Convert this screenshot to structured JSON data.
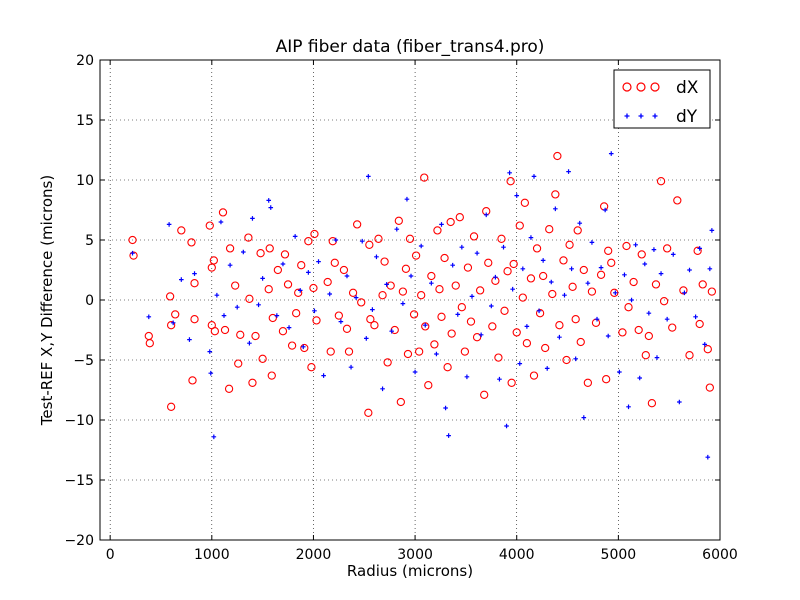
{
  "chart_data": {
    "type": "scatter",
    "title": "AIP fiber data (fiber_trans4.pro)",
    "xlabel": "Radius (microns)",
    "ylabel": "Test-REF X,Y Difference (microns)",
    "xlim": [
      -100,
      6000
    ],
    "ylim": [
      -20,
      20
    ],
    "x_ticks": [
      0,
      1000,
      2000,
      3000,
      4000,
      5000,
      6000
    ],
    "x_tick_labels": [
      "0",
      "1000",
      "2000",
      "3000",
      "4000",
      "5000",
      "6000"
    ],
    "y_ticks": [
      -20,
      -15,
      -10,
      -5,
      0,
      5,
      10,
      15,
      20
    ],
    "y_tick_labels": [
      "−20",
      "−15",
      "−10",
      "−5",
      "0",
      "5",
      "10",
      "15",
      "20"
    ],
    "grid": true,
    "legend_position": "top-right",
    "series": [
      {
        "name": "dX",
        "marker": "open-circle",
        "color": "#ff0000",
        "points": [
          [
            220,
            5.0
          ],
          [
            230,
            3.7
          ],
          [
            380,
            -3.0
          ],
          [
            390,
            -3.6
          ],
          [
            590,
            0.3
          ],
          [
            600,
            -2.1
          ],
          [
            600,
            -8.9
          ],
          [
            640,
            -1.2
          ],
          [
            700,
            5.8
          ],
          [
            800,
            4.8
          ],
          [
            810,
            -6.7
          ],
          [
            830,
            1.4
          ],
          [
            830,
            -1.6
          ],
          [
            980,
            6.2
          ],
          [
            1000,
            2.7
          ],
          [
            1000,
            -2.1
          ],
          [
            1020,
            3.3
          ],
          [
            1030,
            -2.6
          ],
          [
            1110,
            7.3
          ],
          [
            1130,
            -2.5
          ],
          [
            1170,
            -7.4
          ],
          [
            1180,
            4.3
          ],
          [
            1230,
            1.2
          ],
          [
            1260,
            -5.3
          ],
          [
            1280,
            -2.9
          ],
          [
            1360,
            5.2
          ],
          [
            1370,
            0.1
          ],
          [
            1400,
            -6.9
          ],
          [
            1430,
            -3.0
          ],
          [
            1480,
            3.9
          ],
          [
            1500,
            -4.9
          ],
          [
            1560,
            0.9
          ],
          [
            1570,
            4.3
          ],
          [
            1590,
            -6.3
          ],
          [
            1600,
            -1.5
          ],
          [
            1650,
            2.5
          ],
          [
            1700,
            -2.6
          ],
          [
            1720,
            3.8
          ],
          [
            1750,
            1.3
          ],
          [
            1790,
            -3.8
          ],
          [
            1830,
            -1.1
          ],
          [
            1850,
            0.6
          ],
          [
            1880,
            2.9
          ],
          [
            1910,
            -4.0
          ],
          [
            1950,
            4.9
          ],
          [
            1980,
            -5.6
          ],
          [
            2000,
            1.0
          ],
          [
            2010,
            5.5
          ],
          [
            2030,
            -1.7
          ],
          [
            2140,
            1.5
          ],
          [
            2170,
            -4.3
          ],
          [
            2190,
            4.9
          ],
          [
            2210,
            3.1
          ],
          [
            2250,
            -1.3
          ],
          [
            2300,
            2.5
          ],
          [
            2330,
            -2.4
          ],
          [
            2350,
            -4.3
          ],
          [
            2390,
            0.6
          ],
          [
            2430,
            6.3
          ],
          [
            2470,
            -0.2
          ],
          [
            2540,
            -9.4
          ],
          [
            2550,
            4.6
          ],
          [
            2560,
            -1.6
          ],
          [
            2600,
            -2.1
          ],
          [
            2640,
            5.1
          ],
          [
            2680,
            0.4
          ],
          [
            2700,
            3.2
          ],
          [
            2730,
            -5.2
          ],
          [
            2760,
            1.2
          ],
          [
            2800,
            -2.5
          ],
          [
            2840,
            6.6
          ],
          [
            2860,
            -8.5
          ],
          [
            2880,
            0.7
          ],
          [
            2910,
            2.6
          ],
          [
            2930,
            -4.5
          ],
          [
            2950,
            5.1
          ],
          [
            2990,
            -1.2
          ],
          [
            3010,
            3.7
          ],
          [
            3040,
            -4.3
          ],
          [
            3060,
            0.4
          ],
          [
            3090,
            10.2
          ],
          [
            3100,
            -2.2
          ],
          [
            3130,
            -7.1
          ],
          [
            3160,
            2.0
          ],
          [
            3190,
            -3.7
          ],
          [
            3220,
            5.8
          ],
          [
            3240,
            0.9
          ],
          [
            3260,
            -1.4
          ],
          [
            3290,
            3.5
          ],
          [
            3320,
            -5.6
          ],
          [
            3350,
            6.5
          ],
          [
            3360,
            -2.8
          ],
          [
            3400,
            1.2
          ],
          [
            3440,
            6.9
          ],
          [
            3460,
            -0.6
          ],
          [
            3490,
            -4.3
          ],
          [
            3520,
            2.7
          ],
          [
            3550,
            -1.8
          ],
          [
            3580,
            5.3
          ],
          [
            3610,
            -3.1
          ],
          [
            3640,
            0.8
          ],
          [
            3680,
            -7.9
          ],
          [
            3700,
            7.4
          ],
          [
            3720,
            3.1
          ],
          [
            3760,
            -2.2
          ],
          [
            3790,
            1.6
          ],
          [
            3820,
            -4.8
          ],
          [
            3850,
            5.1
          ],
          [
            3880,
            -0.9
          ],
          [
            3910,
            2.4
          ],
          [
            3940,
            9.9
          ],
          [
            3950,
            -6.9
          ],
          [
            3970,
            3.0
          ],
          [
            4000,
            -2.7
          ],
          [
            4030,
            6.2
          ],
          [
            4060,
            0.2
          ],
          [
            4080,
            8.1
          ],
          [
            4100,
            -3.6
          ],
          [
            4140,
            1.8
          ],
          [
            4170,
            -6.3
          ],
          [
            4200,
            4.3
          ],
          [
            4230,
            -1.1
          ],
          [
            4260,
            2.0
          ],
          [
            4280,
            -4.0
          ],
          [
            4320,
            5.9
          ],
          [
            4350,
            0.5
          ],
          [
            4380,
            8.8
          ],
          [
            4400,
            12.0
          ],
          [
            4420,
            -2.1
          ],
          [
            4460,
            3.3
          ],
          [
            4490,
            -5.0
          ],
          [
            4520,
            4.6
          ],
          [
            4550,
            1.1
          ],
          [
            4580,
            -1.6
          ],
          [
            4600,
            5.8
          ],
          [
            4630,
            -3.5
          ],
          [
            4660,
            2.5
          ],
          [
            4700,
            -6.9
          ],
          [
            4740,
            0.7
          ],
          [
            4780,
            -1.9
          ],
          [
            4830,
            2.1
          ],
          [
            4860,
            7.8
          ],
          [
            4880,
            -6.6
          ],
          [
            4900,
            4.1
          ],
          [
            4930,
            3.1
          ],
          [
            4960,
            0.6
          ],
          [
            5040,
            -2.7
          ],
          [
            5080,
            4.5
          ],
          [
            5100,
            -0.6
          ],
          [
            5150,
            1.5
          ],
          [
            5200,
            -2.5
          ],
          [
            5230,
            3.8
          ],
          [
            5270,
            -4.6
          ],
          [
            5300,
            -3.0
          ],
          [
            5330,
            -8.6
          ],
          [
            5370,
            1.3
          ],
          [
            5420,
            9.9
          ],
          [
            5450,
            -0.1
          ],
          [
            5480,
            4.3
          ],
          [
            5530,
            -2.3
          ],
          [
            5580,
            8.3
          ],
          [
            5640,
            0.8
          ],
          [
            5700,
            -4.6
          ],
          [
            5780,
            4.1
          ],
          [
            5800,
            -2.0
          ],
          [
            5830,
            1.3
          ],
          [
            5880,
            -4.1
          ],
          [
            5900,
            -7.3
          ],
          [
            5920,
            0.7
          ]
        ]
      },
      {
        "name": "dY",
        "marker": "plus",
        "color": "#0000ff",
        "points": [
          [
            220,
            3.9
          ],
          [
            380,
            -1.4
          ],
          [
            580,
            6.3
          ],
          [
            620,
            -1.9
          ],
          [
            700,
            1.7
          ],
          [
            780,
            -3.3
          ],
          [
            830,
            2.2
          ],
          [
            980,
            -4.3
          ],
          [
            990,
            -6.1
          ],
          [
            1020,
            -11.4
          ],
          [
            1050,
            0.4
          ],
          [
            1090,
            6.5
          ],
          [
            1120,
            -1.3
          ],
          [
            1180,
            2.9
          ],
          [
            1250,
            -0.6
          ],
          [
            1310,
            4.0
          ],
          [
            1370,
            -3.6
          ],
          [
            1400,
            6.8
          ],
          [
            1460,
            -0.4
          ],
          [
            1500,
            1.8
          ],
          [
            1560,
            8.3
          ],
          [
            1580,
            7.7
          ],
          [
            1640,
            -1.3
          ],
          [
            1700,
            3.0
          ],
          [
            1760,
            -2.3
          ],
          [
            1820,
            5.3
          ],
          [
            1870,
            0.8
          ],
          [
            1900,
            -3.9
          ],
          [
            1950,
            2.3
          ],
          [
            2010,
            -0.9
          ],
          [
            2050,
            3.2
          ],
          [
            2100,
            -6.3
          ],
          [
            2160,
            0.5
          ],
          [
            2220,
            5.0
          ],
          [
            2270,
            -1.8
          ],
          [
            2330,
            2.0
          ],
          [
            2370,
            -5.6
          ],
          [
            2420,
            0.2
          ],
          [
            2480,
            4.9
          ],
          [
            2520,
            -3.2
          ],
          [
            2540,
            10.3
          ],
          [
            2580,
            -0.8
          ],
          [
            2620,
            3.6
          ],
          [
            2680,
            -7.4
          ],
          [
            2720,
            1.3
          ],
          [
            2770,
            -2.6
          ],
          [
            2820,
            5.9
          ],
          [
            2880,
            -0.3
          ],
          [
            2920,
            8.4
          ],
          [
            2960,
            2.0
          ],
          [
            3000,
            -6.0
          ],
          [
            3060,
            4.5
          ],
          [
            3100,
            -2.1
          ],
          [
            3160,
            1.4
          ],
          [
            3210,
            -4.5
          ],
          [
            3260,
            6.3
          ],
          [
            3300,
            -9.0
          ],
          [
            3330,
            -11.3
          ],
          [
            3370,
            2.9
          ],
          [
            3420,
            -1.2
          ],
          [
            3460,
            4.4
          ],
          [
            3510,
            -6.4
          ],
          [
            3560,
            0.3
          ],
          [
            3610,
            3.9
          ],
          [
            3650,
            -2.9
          ],
          [
            3700,
            7.1
          ],
          [
            3750,
            -0.5
          ],
          [
            3790,
            1.9
          ],
          [
            3830,
            -6.6
          ],
          [
            3870,
            4.4
          ],
          [
            3900,
            -10.5
          ],
          [
            3930,
            10.6
          ],
          [
            3960,
            0.9
          ],
          [
            4000,
            8.7
          ],
          [
            4030,
            -5.3
          ],
          [
            4060,
            2.6
          ],
          [
            4100,
            -2.2
          ],
          [
            4140,
            5.2
          ],
          [
            4170,
            10.3
          ],
          [
            4220,
            -0.9
          ],
          [
            4260,
            3.3
          ],
          [
            4300,
            -5.7
          ],
          [
            4340,
            1.5
          ],
          [
            4380,
            7.6
          ],
          [
            4420,
            -3.1
          ],
          [
            4470,
            0.4
          ],
          [
            4510,
            10.7
          ],
          [
            4540,
            2.6
          ],
          [
            4580,
            -4.9
          ],
          [
            4620,
            6.4
          ],
          [
            4660,
            -9.8
          ],
          [
            4700,
            1.4
          ],
          [
            4740,
            4.8
          ],
          [
            4790,
            -1.6
          ],
          [
            4830,
            2.7
          ],
          [
            4870,
            7.5
          ],
          [
            4900,
            -3.0
          ],
          [
            4930,
            12.2
          ],
          [
            4970,
            0.6
          ],
          [
            5010,
            -6.0
          ],
          [
            5060,
            2.1
          ],
          [
            5100,
            -8.9
          ],
          [
            5130,
            0.0
          ],
          [
            5170,
            4.6
          ],
          [
            5210,
            -6.5
          ],
          [
            5260,
            3.0
          ],
          [
            5300,
            -1.1
          ],
          [
            5350,
            4.2
          ],
          [
            5380,
            -4.8
          ],
          [
            5420,
            2.2
          ],
          [
            5480,
            -1.6
          ],
          [
            5540,
            3.8
          ],
          [
            5600,
            -8.5
          ],
          [
            5650,
            0.6
          ],
          [
            5700,
            2.5
          ],
          [
            5760,
            -1.4
          ],
          [
            5800,
            4.3
          ],
          [
            5850,
            -3.7
          ],
          [
            5880,
            -13.1
          ],
          [
            5900,
            2.6
          ],
          [
            5920,
            5.8
          ]
        ]
      }
    ]
  }
}
